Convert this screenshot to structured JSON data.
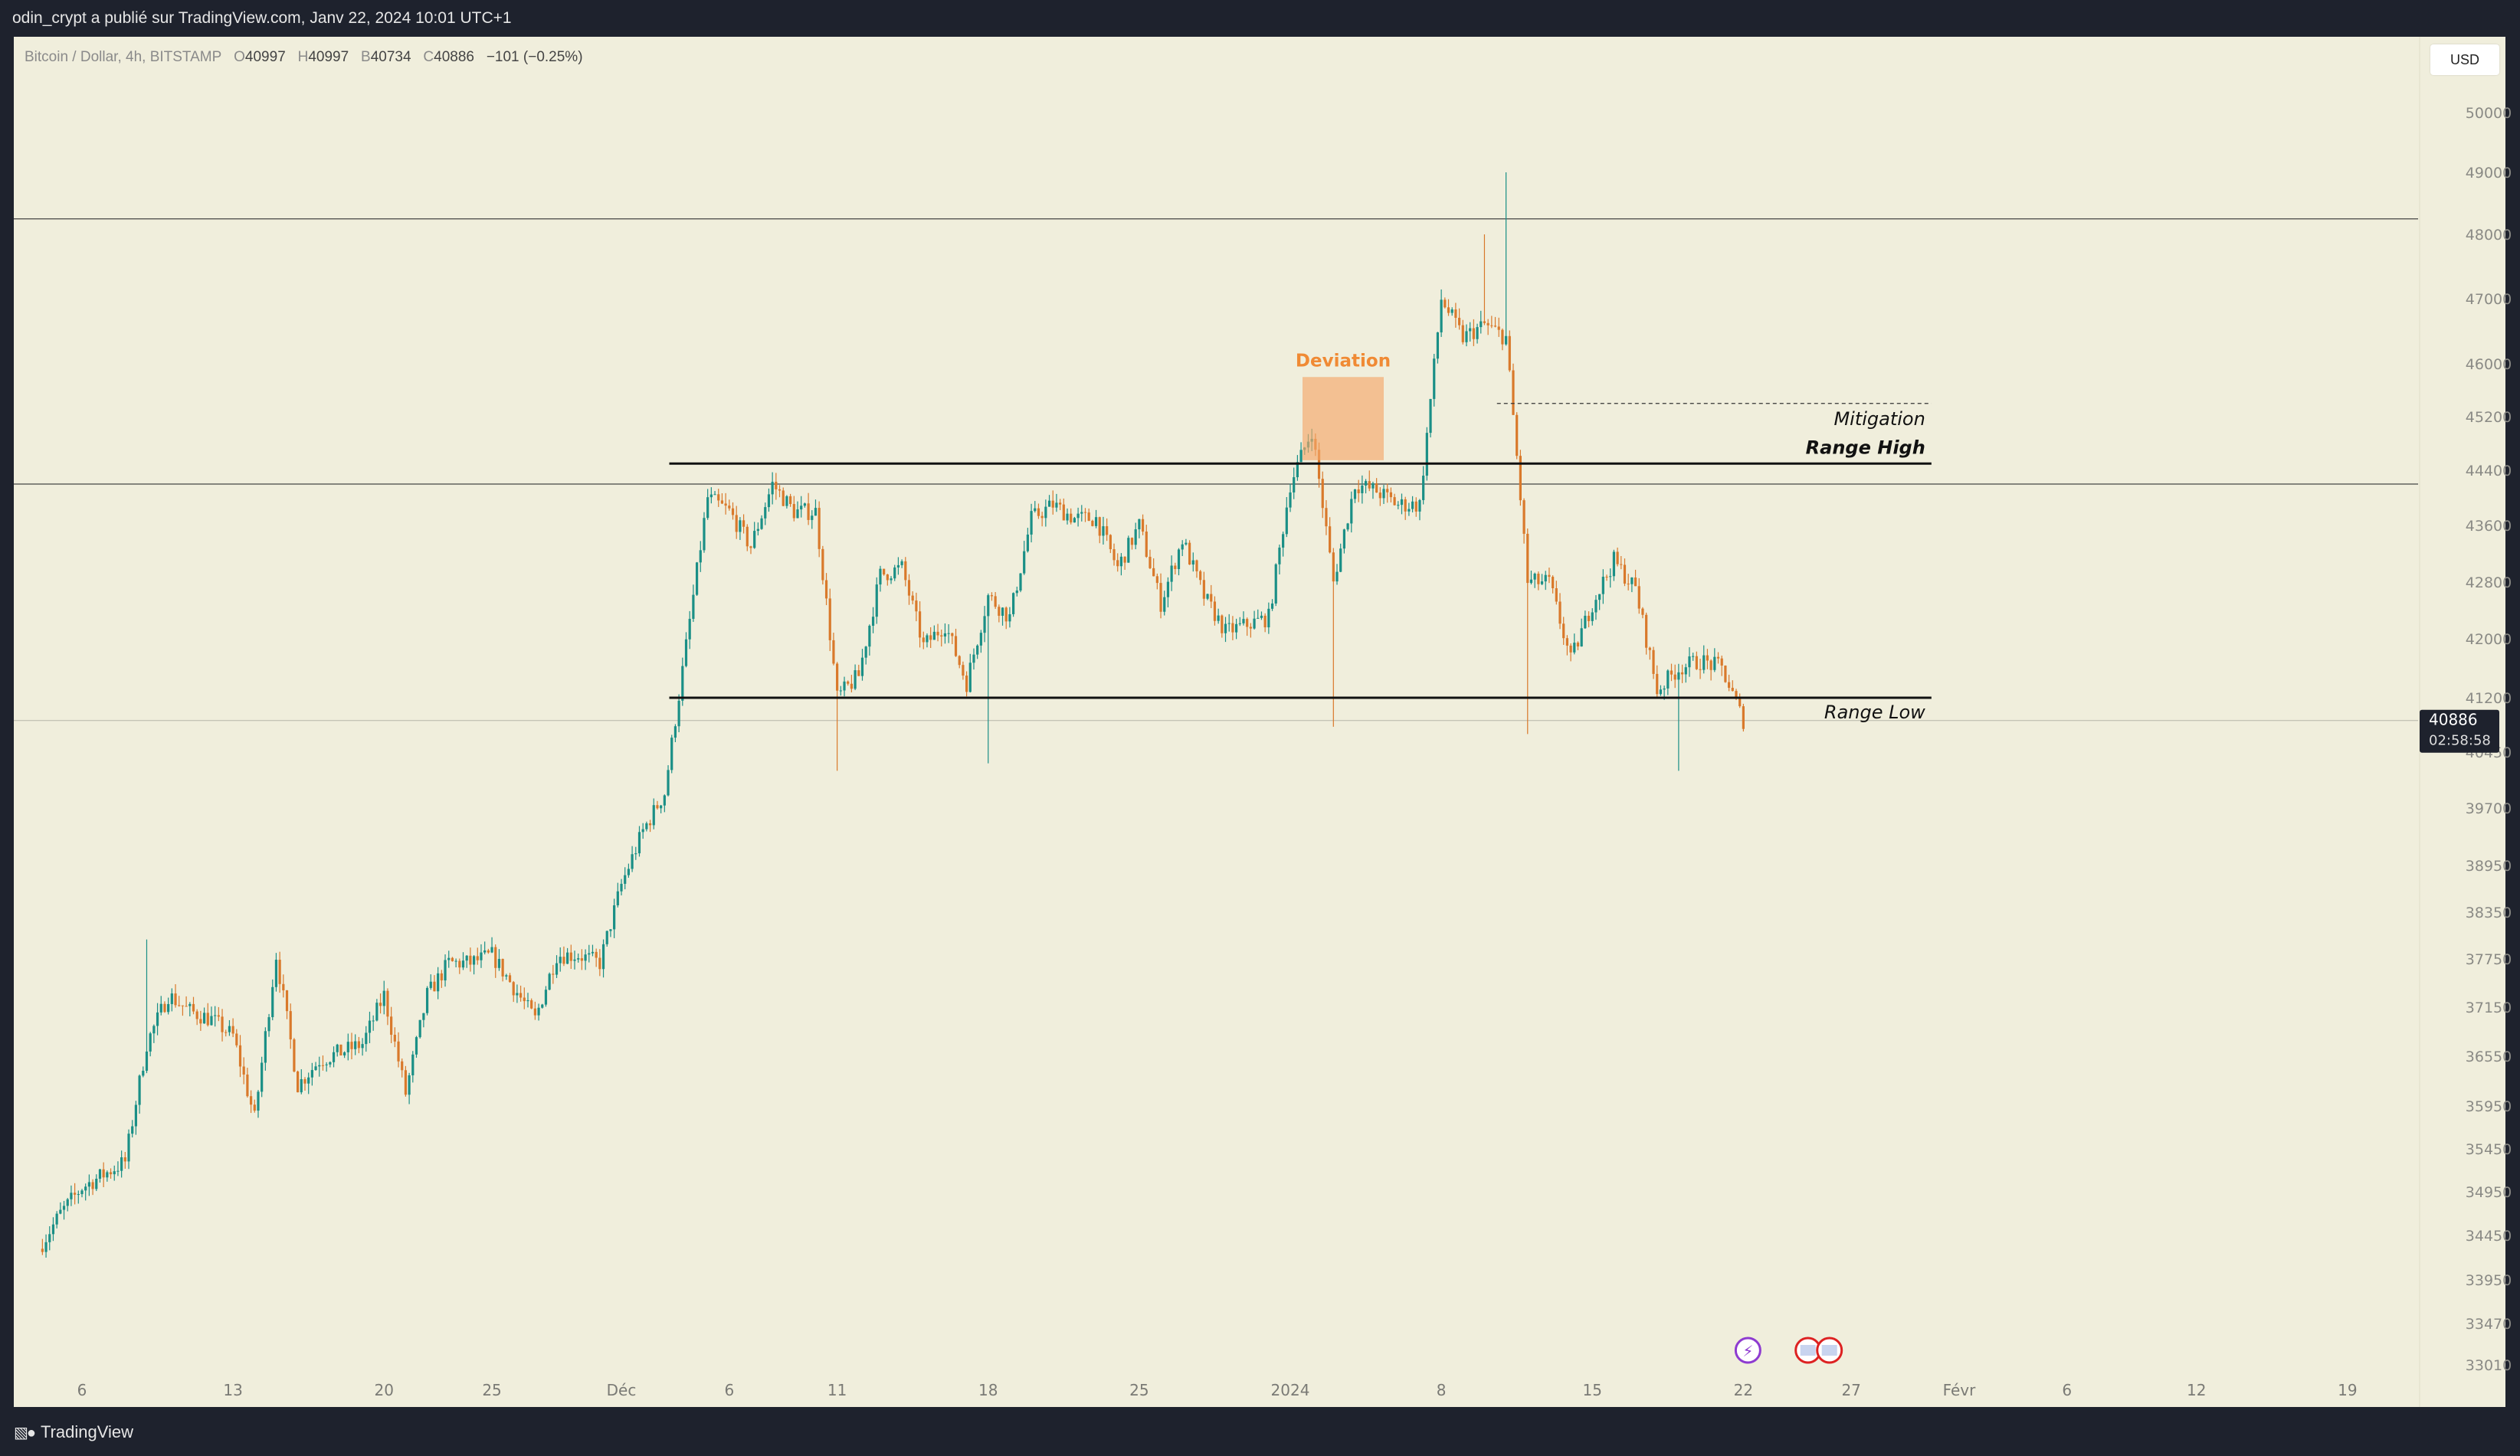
{
  "header": {
    "publish_text": "odin_crypt a publié sur TradingView.com, Janv 22, 2024 10:01 UTC+1"
  },
  "legend": {
    "symbol": "Bitcoin / Dollar, 4h, BITSTAMP",
    "open_label": "O",
    "open": "40997",
    "high_label": "H",
    "high": "40997",
    "low_label": "B",
    "low": "40734",
    "close_label": "C",
    "close": "40886",
    "change": "−101 (−0.25%)"
  },
  "currency_button": "USD",
  "footer": {
    "brand": "TradingView"
  },
  "colors": {
    "background": "#f0eedc",
    "up_candle": "#1a8f86",
    "down_candle": "#d9792b",
    "annotation": "#111111",
    "deviation_box": "#f5a76a",
    "deviation_text": "#f08a34",
    "frame": "#1e222d"
  },
  "icons": [
    "tradingview-logo-icon",
    "lightning-event-icon",
    "us-flag-event-icon"
  ],
  "chart_data": {
    "type": "candlestick",
    "symbol": "Bitcoin / Dollar",
    "interval": "4h",
    "exchange": "BITSTAMP",
    "current_price": "40886",
    "countdown": "02:58:58",
    "y_ticks": [
      "50000",
      "49000",
      "48000",
      "47000",
      "46000",
      "45200",
      "44400",
      "43600",
      "42800",
      "42000",
      "41200",
      "40450",
      "39700",
      "38950",
      "38350",
      "37750",
      "37150",
      "36550",
      "35950",
      "35450",
      "34950",
      "34450",
      "33950",
      "33470",
      "33010"
    ],
    "x_ticks": [
      "6",
      "13",
      "20",
      "25",
      "Déc",
      "6",
      "11",
      "18",
      "25",
      "2024",
      "8",
      "15",
      "22",
      "27",
      "Févr",
      "6",
      "12",
      "19"
    ],
    "approx_close_path": [
      [
        "2023-11-04",
        34300
      ],
      [
        "2023-11-05",
        34700
      ],
      [
        "2023-11-06",
        35000
      ],
      [
        "2023-11-08",
        35300
      ],
      [
        "2023-11-09",
        36700
      ],
      [
        "2023-11-10",
        37300
      ],
      [
        "2023-11-11",
        37100
      ],
      [
        "2023-11-12",
        37000
      ],
      [
        "2023-11-13",
        36800
      ],
      [
        "2023-11-14",
        35800
      ],
      [
        "2023-11-15",
        37800
      ],
      [
        "2023-11-16",
        36200
      ],
      [
        "2023-11-17",
        36500
      ],
      [
        "2023-11-19",
        36700
      ],
      [
        "2023-11-20",
        37300
      ],
      [
        "2023-11-21",
        36100
      ],
      [
        "2023-11-22",
        37300
      ],
      [
        "2023-11-23",
        37700
      ],
      [
        "2023-11-24",
        37700
      ],
      [
        "2023-11-25",
        37800
      ],
      [
        "2023-11-26",
        37400
      ],
      [
        "2023-11-27",
        37000
      ],
      [
        "2023-11-28",
        37800
      ],
      [
        "2023-11-29",
        37800
      ],
      [
        "2023-11-30",
        37700
      ],
      [
        "2023-12-01",
        38700
      ],
      [
        "2023-12-02",
        39400
      ],
      [
        "2023-12-03",
        39900
      ],
      [
        "2023-12-04",
        41900
      ],
      [
        "2023-12-05",
        44000
      ],
      [
        "2023-12-06",
        43800
      ],
      [
        "2023-12-07",
        43300
      ],
      [
        "2023-12-08",
        44200
      ],
      [
        "2023-12-09",
        43800
      ],
      [
        "2023-12-10",
        43800
      ],
      [
        "2023-12-11",
        41200
      ],
      [
        "2023-12-12",
        41500
      ],
      [
        "2023-12-13",
        42900
      ],
      [
        "2023-12-14",
        43000
      ],
      [
        "2023-12-15",
        41900
      ],
      [
        "2023-12-16",
        42200
      ],
      [
        "2023-12-17",
        41400
      ],
      [
        "2023-12-18",
        42600
      ],
      [
        "2023-12-19",
        42300
      ],
      [
        "2023-12-20",
        43700
      ],
      [
        "2023-12-21",
        43900
      ],
      [
        "2023-12-22",
        43700
      ],
      [
        "2023-12-23",
        43700
      ],
      [
        "2023-12-24",
        43000
      ],
      [
        "2023-12-25",
        43600
      ],
      [
        "2023-12-26",
        42500
      ],
      [
        "2023-12-27",
        43400
      ],
      [
        "2023-12-28",
        42600
      ],
      [
        "2023-12-29",
        42100
      ],
      [
        "2023-12-30",
        42200
      ],
      [
        "2023-12-31",
        42300
      ],
      [
        "2024-01-01",
        44200
      ],
      [
        "2024-01-02",
        45000
      ],
      [
        "2024-01-03",
        42800
      ],
      [
        "2024-01-04",
        44200
      ],
      [
        "2024-01-05",
        44100
      ],
      [
        "2024-01-06",
        43900
      ],
      [
        "2024-01-07",
        43900
      ],
      [
        "2024-01-08",
        47000
      ],
      [
        "2024-01-09",
        46400
      ],
      [
        "2024-01-10",
        46600
      ],
      [
        "2024-01-11",
        46400
      ],
      [
        "2024-01-12",
        42800
      ],
      [
        "2024-01-13",
        42800
      ],
      [
        "2024-01-14",
        41700
      ],
      [
        "2024-01-15",
        42500
      ],
      [
        "2024-01-16",
        43100
      ],
      [
        "2024-01-17",
        42700
      ],
      [
        "2024-01-18",
        41300
      ],
      [
        "2024-01-19",
        41600
      ],
      [
        "2024-01-20",
        41700
      ],
      [
        "2024-01-21",
        41600
      ],
      [
        "2024-01-22",
        40886
      ]
    ],
    "annotations": [
      {
        "type": "box",
        "label": "Deviation",
        "y_range": [
          44550,
          45800
        ]
      },
      {
        "type": "line",
        "label": "Mitigation",
        "style": "dashed",
        "y": 45400
      },
      {
        "type": "line",
        "label": "Range High",
        "y": 44500
      },
      {
        "type": "line",
        "label": "Range Low",
        "y": 41200
      }
    ],
    "horizontal_lines": [
      48250,
      44200,
      40886
    ]
  }
}
